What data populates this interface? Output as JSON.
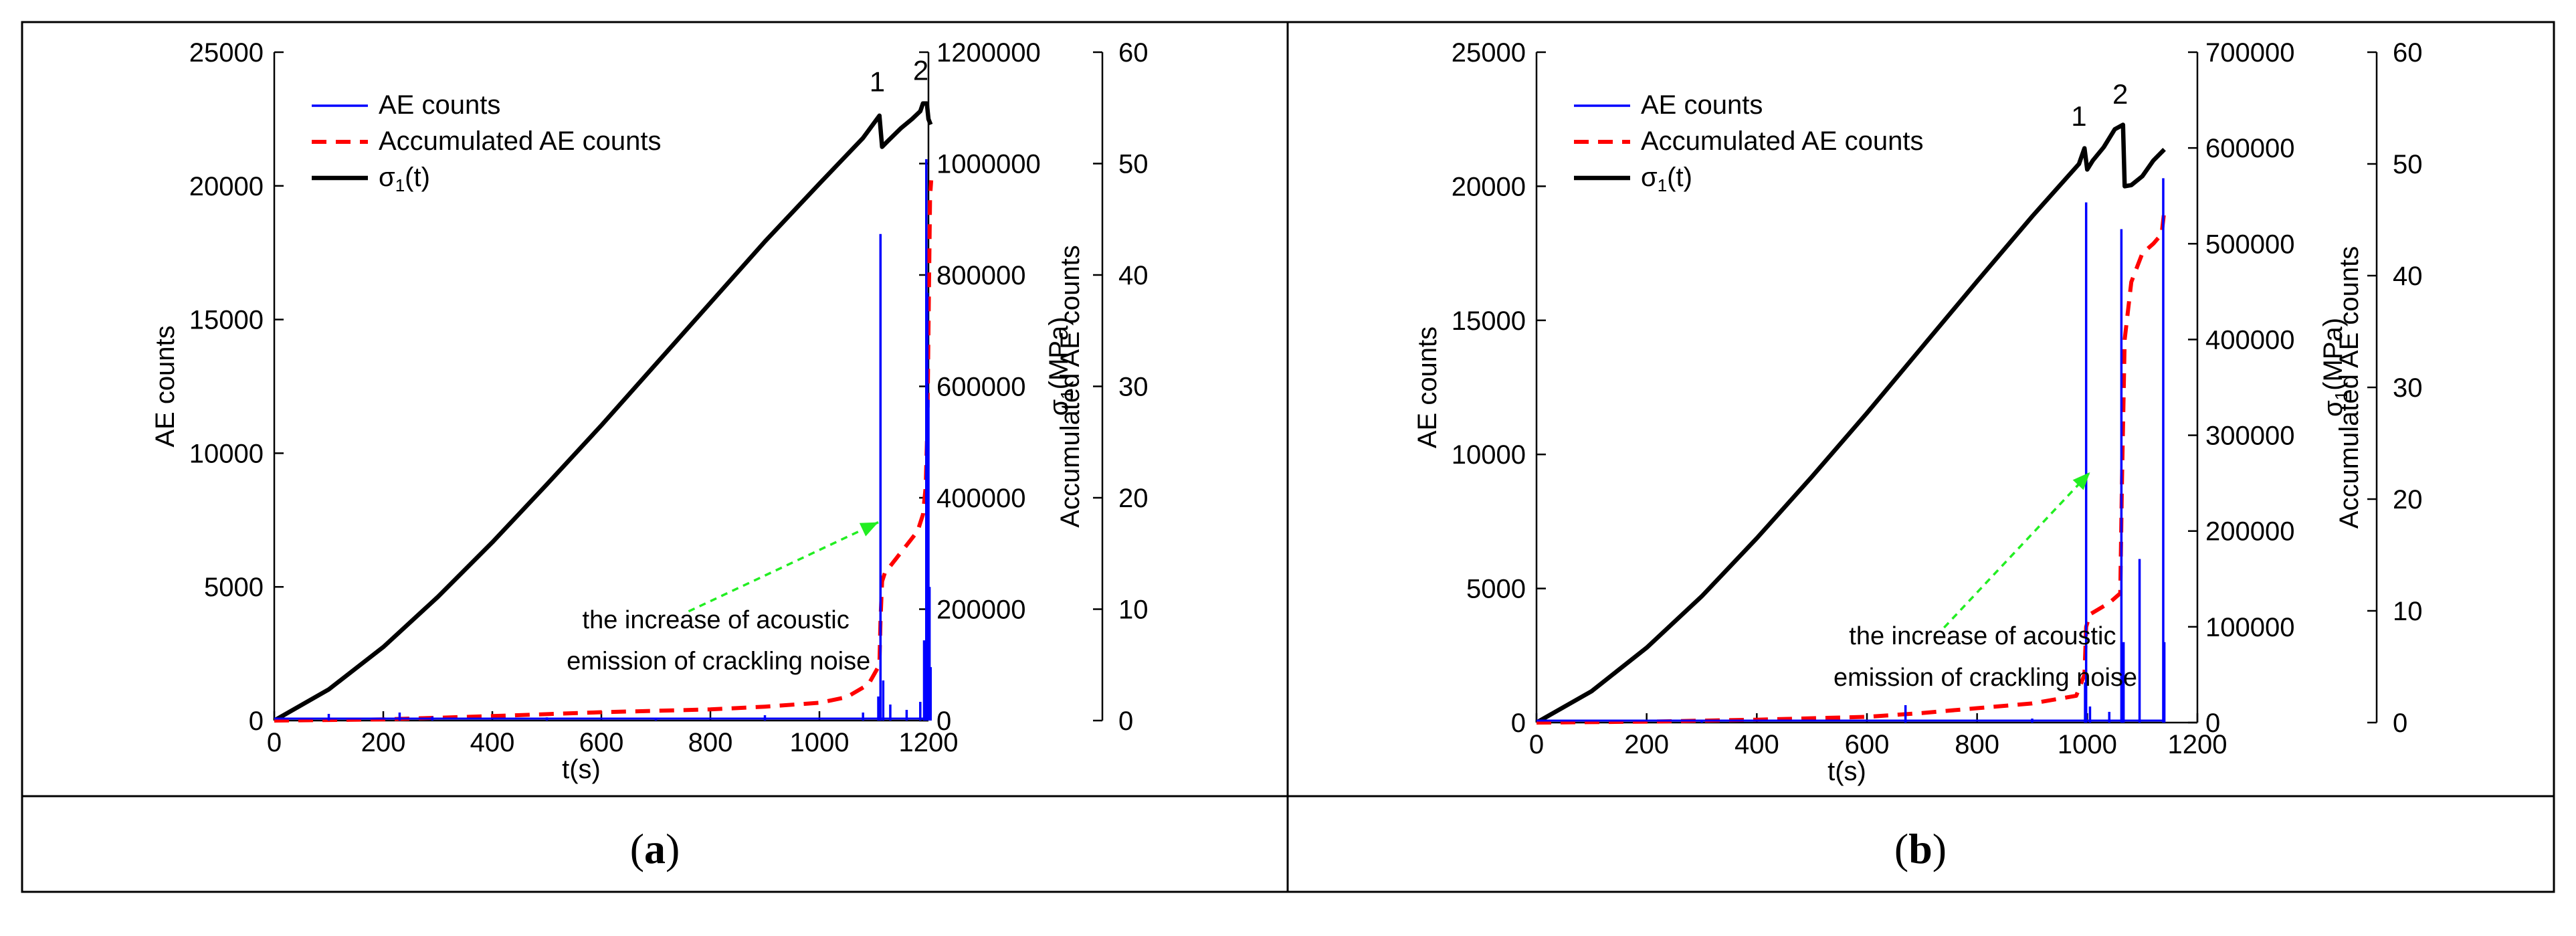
{
  "panels": [
    {
      "caption": "a",
      "chart_data": {
        "type": "line",
        "x_axis": {
          "label": "t(s)",
          "range": [
            0,
            1200
          ],
          "ticks": [
            0,
            200,
            400,
            600,
            800,
            1000,
            1200
          ]
        },
        "y_axes": [
          {
            "label": "AE counts",
            "range": [
              0,
              25000
            ],
            "ticks": [
              0,
              5000,
              10000,
              15000,
              20000,
              25000
            ]
          },
          {
            "label": "Accumulated AE counts",
            "range": [
              0,
              1200000
            ],
            "ticks": [
              0,
              200000,
              400000,
              600000,
              800000,
              1000000,
              1200000
            ]
          },
          {
            "label": "σ1(MPa)",
            "range": [
              0,
              60
            ],
            "ticks": [
              0,
              10,
              20,
              30,
              40,
              50,
              60
            ]
          }
        ],
        "legend": [
          "AE counts",
          "Accumulated AE counts",
          "σ1(t)"
        ],
        "series": [
          {
            "name": "σ1(t)",
            "axis": 2,
            "color": "#000000",
            "x": [
              0,
              100,
              200,
              300,
              400,
              500,
              600,
              700,
              800,
              900,
              1000,
              1080,
              1110,
              1115,
              1125,
              1150,
              1170,
              1185,
              1190,
              1197,
              1200,
              1204
            ],
            "y": [
              0,
              2.8,
              6.6,
              11.1,
              16.0,
              21.2,
              26.5,
              32.0,
              37.5,
              43.0,
              48.2,
              52.3,
              54.3,
              51.5,
              52.0,
              53.2,
              54.0,
              54.7,
              55.4,
              55.4,
              54.0,
              53.5
            ]
          },
          {
            "name": "Accumulated AE counts",
            "axis": 1,
            "color": "#ff0000",
            "x": [
              0,
              200,
              400,
              600,
              800,
              900,
              1000,
              1050,
              1090,
              1110,
              1112,
              1115,
              1120,
              1140,
              1160,
              1180,
              1190,
              1195,
              1198,
              1200,
              1202,
              1203,
              1205
            ],
            "y": [
              0,
              2000,
              8000,
              15000,
              20000,
              25000,
              32000,
              42000,
              65000,
              100000,
              180000,
              250000,
              265000,
              290000,
              315000,
              340000,
              370000,
              420000,
              530000,
              700000,
              860000,
              940000,
              970000
            ]
          },
          {
            "name": "AE counts",
            "axis": 0,
            "color": "#0000ff",
            "spikes": [
              [
                100,
                250
              ],
              [
                230,
                300
              ],
              [
                290,
                150
              ],
              [
                500,
                120
              ],
              [
                700,
                100
              ],
              [
                900,
                200
              ],
              [
                1080,
                300
              ],
              [
                1108,
                900
              ],
              [
                1112,
                18200
              ],
              [
                1117,
                1500
              ],
              [
                1130,
                600
              ],
              [
                1160,
                400
              ],
              [
                1185,
                700
              ],
              [
                1192,
                3000
              ],
              [
                1196,
                21000
              ],
              [
                1198,
                16000
              ],
              [
                1200,
                12000
              ],
              [
                1202,
                5000
              ],
              [
                1204,
                2000
              ]
            ]
          }
        ],
        "annotations": [
          {
            "text": "1",
            "x": 1106,
            "y": 56.5
          },
          {
            "text": "2",
            "x": 1186,
            "y": 57.5
          },
          {
            "text": "the increase of acoustic",
            "x": 810,
            "y": 8.3
          },
          {
            "text": "emission of  crackling noise",
            "x": 815,
            "y": 4.6
          }
        ],
        "arrow": {
          "from": [
            760,
            9.8
          ],
          "to": [
            1108,
            17.8
          ],
          "color": "#22ee22"
        }
      }
    },
    {
      "caption": "b",
      "chart_data": {
        "type": "line",
        "x_axis": {
          "label": "t(s)",
          "range": [
            0,
            1200
          ],
          "ticks": [
            0,
            200,
            400,
            600,
            800,
            1000,
            1200
          ]
        },
        "y_axes": [
          {
            "label": "AE counts",
            "range": [
              0,
              25000
            ],
            "ticks": [
              0,
              5000,
              10000,
              15000,
              20000,
              25000
            ]
          },
          {
            "label": "Accumulated AE counts",
            "range": [
              0,
              700000
            ],
            "ticks": [
              0,
              100000,
              200000,
              300000,
              400000,
              500000,
              600000,
              700000
            ]
          },
          {
            "label": "σ1(MPa)",
            "range": [
              0,
              60
            ],
            "ticks": [
              0,
              10,
              20,
              30,
              40,
              50,
              60
            ]
          }
        ],
        "legend": [
          "AE counts",
          "Accumulated AE counts",
          "σ1(t)"
        ],
        "series": [
          {
            "name": "σ1(t)",
            "axis": 2,
            "color": "#000000",
            "x": [
              0,
              100,
              200,
              300,
              400,
              500,
              600,
              700,
              800,
              900,
              985,
              995,
              1000,
              1010,
              1030,
              1050,
              1065,
              1068,
              1080,
              1100,
              1120,
              1140
            ],
            "y": [
              0,
              2.8,
              6.7,
              11.3,
              16.5,
              22.0,
              27.7,
              33.6,
              39.5,
              45.3,
              50.0,
              51.4,
              49.5,
              50.3,
              51.5,
              53.1,
              53.5,
              48.0,
              48.1,
              48.9,
              50.3,
              51.3
            ]
          },
          {
            "name": "Accumulated AE counts",
            "axis": 1,
            "color": "#ff0000",
            "x": [
              0,
              200,
              400,
              600,
              700,
              800,
              900,
              980,
              995,
              998,
              1005,
              1040,
              1060,
              1063,
              1068,
              1080,
              1100,
              1120,
              1135,
              1140
            ],
            "y": [
              0,
              1000,
              3000,
              6000,
              10000,
              15000,
              20000,
              28000,
              50000,
              100000,
              113000,
              125000,
              135000,
              250000,
              400000,
              460000,
              490000,
              500000,
              510000,
              535000
            ]
          },
          {
            "name": "AE counts",
            "axis": 0,
            "color": "#0000ff",
            "spikes": [
              [
                300,
                80
              ],
              [
                670,
                650
              ],
              [
                900,
                150
              ],
              [
                996,
                1500
              ],
              [
                998,
                19400
              ],
              [
                1005,
                600
              ],
              [
                1040,
                400
              ],
              [
                1062,
                18400
              ],
              [
                1066,
                3000
              ],
              [
                1095,
                6100
              ],
              [
                1138,
                20300
              ],
              [
                1140,
                3000
              ]
            ]
          }
        ],
        "annotations": [
          {
            "text": "1",
            "x": 985,
            "y": 53.4
          },
          {
            "text": "2",
            "x": 1060,
            "y": 55.4
          },
          {
            "text": "the increase of acoustic",
            "x": 810,
            "y": 7.0
          },
          {
            "text": "emission of  crackling noise",
            "x": 815,
            "y": 3.3
          }
        ],
        "arrow": {
          "from": [
            740,
            8.5
          ],
          "to": [
            1005,
            22.4
          ],
          "color": "#22ee22"
        }
      }
    }
  ]
}
